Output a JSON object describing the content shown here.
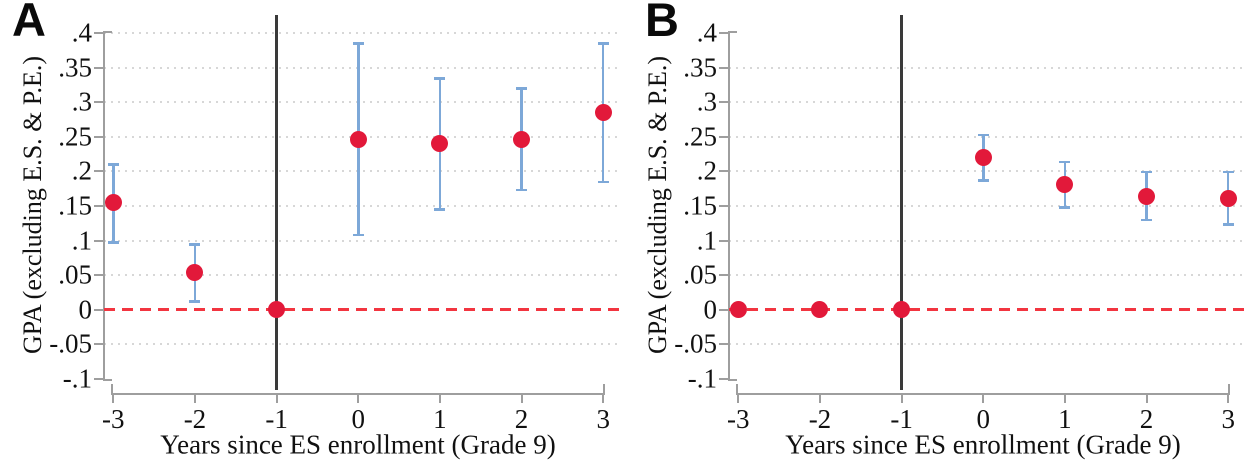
{
  "figure": {
    "description": "Two-panel event-study plot of GPA effects around ES enrollment"
  },
  "colors": {
    "marker": "#e2193a",
    "ci": "#7da8d8",
    "zero_line": "#f23540",
    "event_line": "#3a3a3a",
    "axis": "#9e9e9e",
    "grid": "#d7d7d7",
    "text": "#111111"
  },
  "chart_data": [
    {
      "type": "scatter",
      "panel_label": "A",
      "xlabel": "Years since ES enrollment (Grade 9)",
      "ylabel": "GPA (excluding E.S. & P.E.)",
      "x": [
        -3,
        -2,
        -1,
        0,
        1,
        2,
        3
      ],
      "y": [
        0.155,
        0.053,
        0,
        0.247,
        0.24,
        0.247,
        0.285
      ],
      "ci_low": [
        0.097,
        0.012,
        null,
        0.108,
        0.145,
        0.173,
        0.185
      ],
      "ci_high": [
        0.21,
        0.094,
        null,
        0.385,
        0.335,
        0.32,
        0.385
      ],
      "ylim": [
        -0.1,
        0.4
      ],
      "xlim": [
        -3,
        3
      ],
      "yticks": [
        0.4,
        0.35,
        0.3,
        0.25,
        0.2,
        0.15,
        0.1,
        0.05,
        0,
        -0.05,
        -0.1
      ],
      "ytick_labels": [
        ".4",
        ".35",
        ".3",
        ".25",
        ".2",
        ".15",
        ".1",
        ".05",
        "0",
        "-.05",
        "-.1"
      ],
      "xticks": [
        -3,
        -2,
        -1,
        0,
        1,
        2,
        3
      ],
      "xtick_labels": [
        "-3",
        "-2",
        "-1",
        "0",
        "1",
        "2",
        "3"
      ],
      "grid_values": [
        0.4,
        0.35,
        0.3,
        0.25,
        0.2,
        0.15,
        0.1,
        0.05,
        -0.05
      ],
      "zero_reference_line": 0,
      "event_line_x": -1,
      "legend": "none",
      "grid": "dotted horizontal"
    },
    {
      "type": "scatter",
      "panel_label": "B",
      "xlabel": "Years since ES enrollment (Grade 9)",
      "ylabel": "GPA (excluding E.S. & P.E.)",
      "x": [
        -3,
        -2,
        -1,
        0,
        1,
        2,
        3
      ],
      "y": [
        0,
        0,
        0,
        0.22,
        0.181,
        0.164,
        0.161
      ],
      "ci_low": [
        null,
        null,
        null,
        0.187,
        0.148,
        0.13,
        0.123
      ],
      "ci_high": [
        null,
        null,
        null,
        0.253,
        0.214,
        0.199,
        0.199
      ],
      "ylim": [
        -0.1,
        0.4
      ],
      "xlim": [
        -3,
        3
      ],
      "yticks": [
        0.4,
        0.35,
        0.3,
        0.25,
        0.2,
        0.15,
        0.1,
        0.05,
        0,
        -0.05,
        -0.1
      ],
      "ytick_labels": [
        ".4",
        ".35",
        ".3",
        ".25",
        ".2",
        ".15",
        ".1",
        ".05",
        "0",
        "-.05",
        "-.1"
      ],
      "xticks": [
        -3,
        -2,
        -1,
        0,
        1,
        2,
        3
      ],
      "xtick_labels": [
        "-3",
        "-2",
        "-1",
        "0",
        "1",
        "2",
        "3"
      ],
      "grid_values": [
        0.35,
        0.3,
        0.25,
        0.2,
        0.15,
        0.1,
        0.05,
        -0.05
      ],
      "zero_reference_line": 0,
      "event_line_x": -1,
      "legend": "none",
      "grid": "dotted horizontal"
    }
  ]
}
